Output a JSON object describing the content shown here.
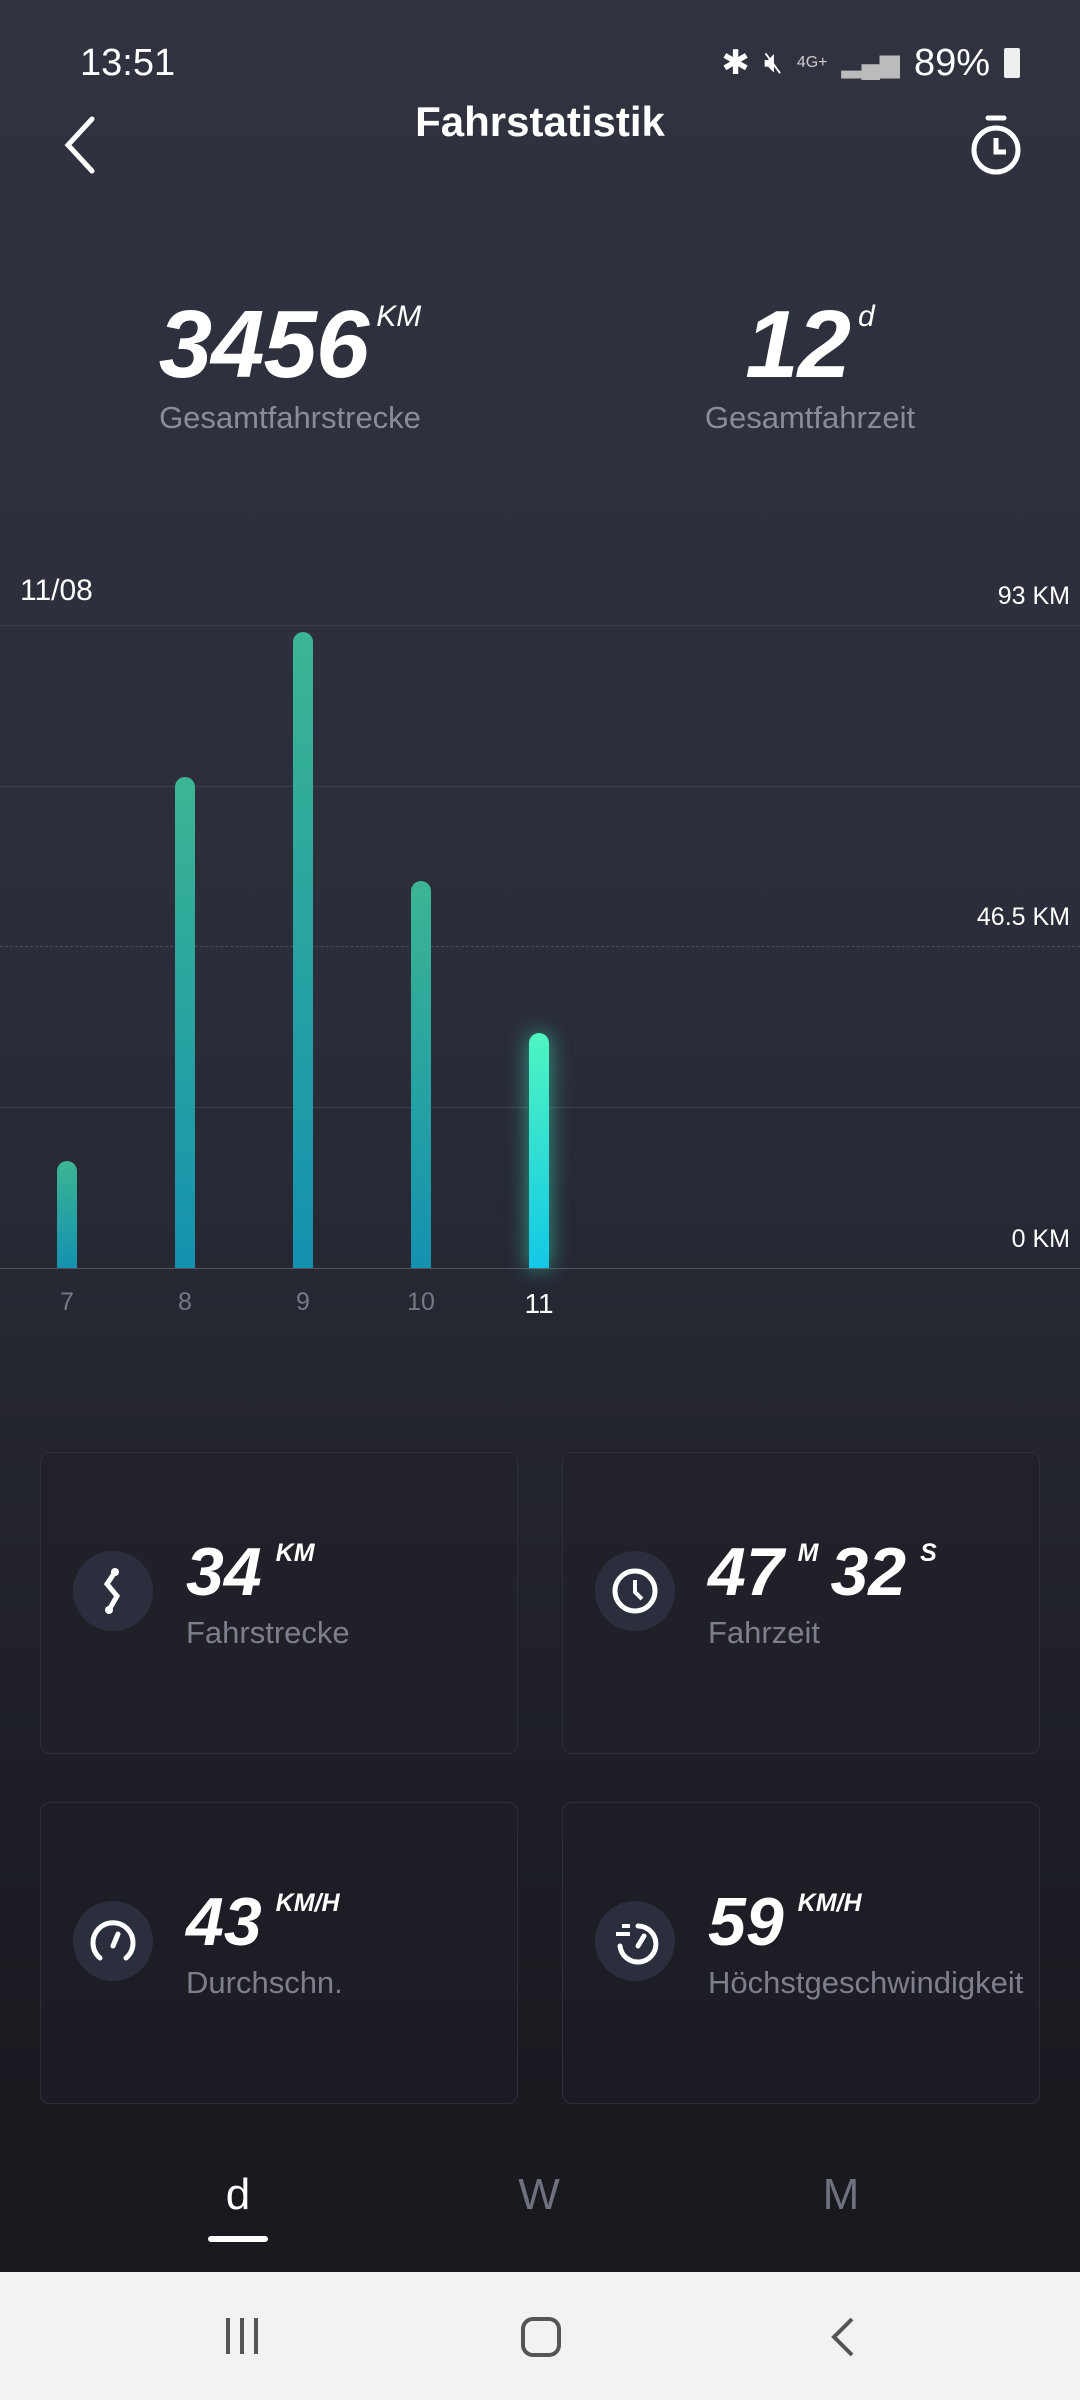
{
  "status": {
    "time": "13:51",
    "network": "4G+",
    "battery": "89%"
  },
  "header": {
    "title": "Fahrstatistik"
  },
  "totals": {
    "distance": {
      "value": "3456",
      "unit": "KM",
      "label": "Gesamtfahrstrecke"
    },
    "time": {
      "value": "12",
      "unit": "d",
      "label": "Gesamtfahrzeit"
    }
  },
  "chart_data": {
    "type": "bar",
    "title": "11/08",
    "categories": [
      "7",
      "8",
      "9",
      "10",
      "11"
    ],
    "values": [
      15.5,
      71,
      92,
      56,
      34
    ],
    "selected": "11",
    "ylim": [
      0,
      93
    ],
    "y_ticks": [
      "93 KM",
      "46.5 KM",
      "0 KM"
    ],
    "grid": true
  },
  "cards": [
    {
      "value": "34",
      "unit": "KM",
      "label": "Fahrstrecke",
      "icon": "route-icon"
    },
    {
      "value": "47",
      "unit": "M",
      "value2": "32",
      "unit2": "S",
      "label": "Fahrzeit",
      "icon": "clock-icon"
    },
    {
      "value": "43",
      "unit": "KM/H",
      "label": "Durchschn.",
      "icon": "speedometer-icon"
    },
    {
      "value": "59",
      "unit": "KM/H",
      "label": "Höchstgeschwindigkeit",
      "icon": "max-speed-icon"
    }
  ],
  "tabs": [
    {
      "label": "d",
      "active": true
    },
    {
      "label": "W"
    },
    {
      "label": "M"
    }
  ]
}
